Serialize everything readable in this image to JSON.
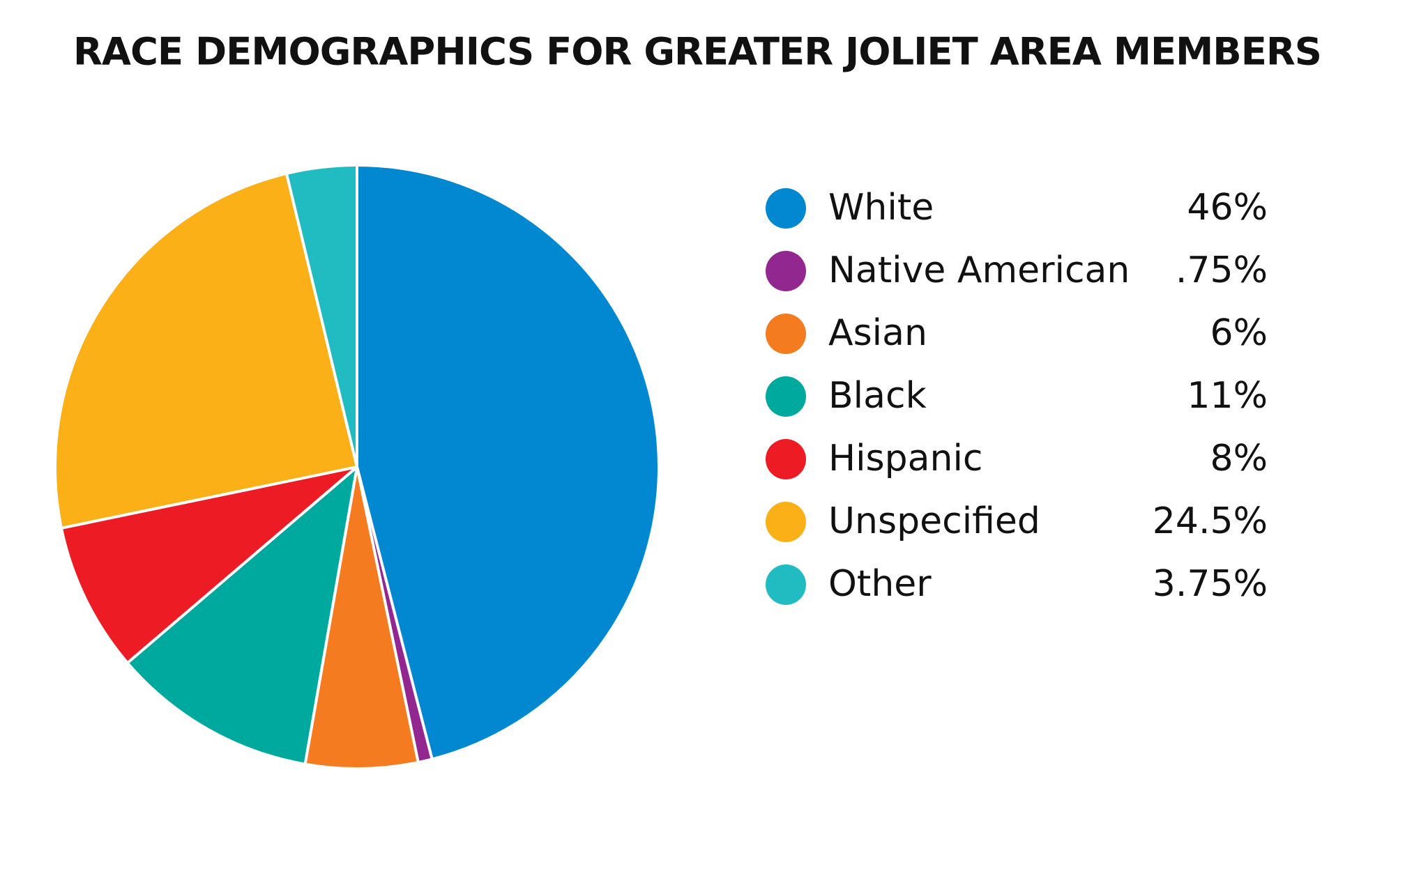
{
  "chart_data": {
    "type": "pie",
    "title": "RACE DEMOGRAPHICS FOR GREATER JOLIET AREA MEMBERS",
    "categories": [
      "White",
      "Native American",
      "Asian",
      "Black",
      "Hispanic",
      "Unspecified",
      "Other"
    ],
    "values": [
      46,
      0.75,
      6,
      11,
      8,
      24.5,
      3.75
    ],
    "value_labels": [
      "46%",
      ".75%",
      "6%",
      "11%",
      "8%",
      "24.5%",
      "3.75%"
    ],
    "colors": [
      "#0288d1",
      "#92278f",
      "#f47b20",
      "#00a99d",
      "#ed1c24",
      "#fbb017",
      "#21bcc1"
    ]
  }
}
